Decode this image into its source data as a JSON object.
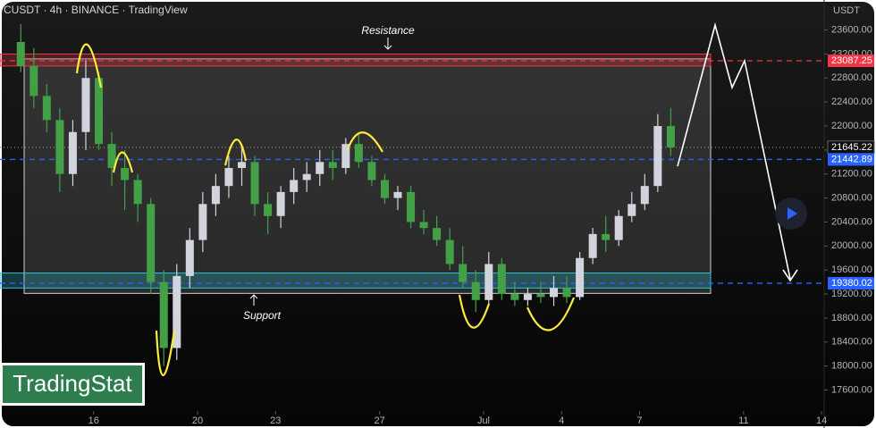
{
  "chart_data": {
    "type": "candlestick",
    "title": "CUSDT · 4h · BINANCE · TradingView",
    "y_axis_label": "USDT",
    "watermark": "TradingStat",
    "annotations": [
      "Resistance",
      "Support"
    ],
    "up_color": "#d1d4dc",
    "down_color": "#43a047",
    "x": [
      13.2,
      13.7,
      14.2,
      14.7,
      15.2,
      15.7,
      16.2,
      16.7,
      17.2,
      17.7,
      18.2,
      18.7,
      19.2,
      19.7,
      20.2,
      20.7,
      21.2,
      21.7,
      22.2,
      22.7,
      23.2,
      23.7,
      24.2,
      24.7,
      25.2,
      25.7,
      26.2,
      26.7,
      27.2,
      27.7,
      28.2,
      28.7,
      29.2,
      29.7,
      30.2,
      30.7,
      31.2,
      31.7,
      32.2,
      32.7,
      33.2,
      33.7,
      34.2,
      34.7,
      35.2,
      35.7,
      36.2,
      36.7,
      37.2,
      37.7,
      38.2
    ],
    "open": [
      23400,
      23000,
      22500,
      22100,
      21200,
      21900,
      22800,
      21700,
      21300,
      21100,
      20700,
      19400,
      18300,
      19500,
      20100,
      20700,
      21000,
      21300,
      21400,
      20700,
      20500,
      20900,
      21100,
      21200,
      21400,
      21300,
      21700,
      21400,
      21100,
      20800,
      20900,
      20400,
      20300,
      20100,
      19700,
      19400,
      19100,
      19700,
      19200,
      19100,
      19200,
      19150,
      19300,
      19150,
      19800,
      20200,
      20100,
      20500,
      20700,
      21000,
      22000
    ],
    "high": [
      23700,
      23300,
      22700,
      22300,
      22100,
      23100,
      22900,
      21900,
      21600,
      21200,
      20800,
      19600,
      19700,
      20300,
      20900,
      21200,
      21500,
      21700,
      21500,
      20900,
      21000,
      21300,
      21400,
      21600,
      21600,
      21800,
      21900,
      21500,
      21200,
      21000,
      21000,
      20600,
      20500,
      20300,
      20000,
      19600,
      19900,
      19800,
      19400,
      19300,
      19400,
      19500,
      19500,
      19900,
      20300,
      20500,
      20600,
      20900,
      21200,
      22200,
      22300
    ],
    "low": [
      22900,
      22300,
      21900,
      20900,
      21000,
      21600,
      21600,
      21000,
      20600,
      20400,
      19200,
      18000,
      18100,
      19300,
      19900,
      20500,
      20800,
      21000,
      20500,
      20200,
      20300,
      20700,
      20900,
      21000,
      21100,
      21200,
      21300,
      21000,
      20700,
      20600,
      20300,
      20200,
      20000,
      19600,
      19300,
      18900,
      19000,
      19100,
      19000,
      19000,
      19050,
      19000,
      19050,
      19100,
      19700,
      19900,
      20000,
      20400,
      20600,
      20900,
      21500
    ],
    "close": [
      23000,
      22500,
      22100,
      21200,
      21900,
      22800,
      21700,
      21300,
      21100,
      20700,
      19400,
      18300,
      19500,
      20100,
      20700,
      21000,
      21300,
      21400,
      20700,
      20500,
      20900,
      21100,
      21200,
      21400,
      21300,
      21700,
      21400,
      21100,
      20800,
      20900,
      20400,
      20300,
      20100,
      19700,
      19400,
      19100,
      19700,
      19200,
      19100,
      19200,
      19150,
      19300,
      19150,
      19800,
      20200,
      20100,
      20500,
      20700,
      21000,
      22000,
      21645.22
    ],
    "xlim": [
      12.4,
      44.1
    ],
    "xticks": [
      16,
      20,
      23,
      27,
      {
        "value": 31,
        "label": "Jul"
      },
      {
        "value": 34,
        "label": "4"
      },
      {
        "value": 37,
        "label": "7"
      },
      {
        "value": 41,
        "label": "11"
      },
      {
        "value": 44,
        "label": "14"
      }
    ],
    "ylim": [
      17250,
      24100
    ],
    "yticks": [
      {
        "value": 17600,
        "label": "17600.00"
      },
      {
        "value": 18000,
        "label": "18000.00"
      },
      {
        "value": 18400,
        "label": "18400.00"
      },
      {
        "value": 18800,
        "label": "18800.00"
      },
      {
        "value": 19200,
        "label": "19200.00"
      },
      {
        "value": 19600,
        "label": "19600.00"
      },
      {
        "value": 20000,
        "label": "20000.00"
      },
      {
        "value": 20400,
        "label": "20400.00"
      },
      {
        "value": 20800,
        "label": "20800.00"
      },
      {
        "value": 21200,
        "label": "21200.00"
      },
      {
        "value": 21600,
        "label": "21600.00"
      },
      {
        "value": 22000,
        "label": "22000.00"
      },
      {
        "value": 22400,
        "label": "22400.00"
      },
      {
        "value": 22800,
        "label": "22800.00"
      },
      {
        "value": 23200,
        "label": "23200.00"
      },
      {
        "value": 23600,
        "label": "23600.00"
      }
    ],
    "levels": [
      {
        "value": 23087.25,
        "label": "23087.25",
        "color": "#f23645",
        "style": "dashed"
      },
      {
        "value": 21645.22,
        "label": "21645.22",
        "color": "#888888",
        "style": "dotted"
      },
      {
        "value": 21442.89,
        "label": "21442.89",
        "color": "#2962ff",
        "style": "dashed"
      },
      {
        "value": 19380.02,
        "label": "19380.02",
        "color": "#2962ff",
        "style": "dashed"
      }
    ],
    "zones": [
      {
        "low": 23000,
        "high": 23200,
        "color": "#f23645"
      },
      {
        "low": 19300,
        "high": 19550,
        "color": "#26c6da"
      }
    ]
  }
}
